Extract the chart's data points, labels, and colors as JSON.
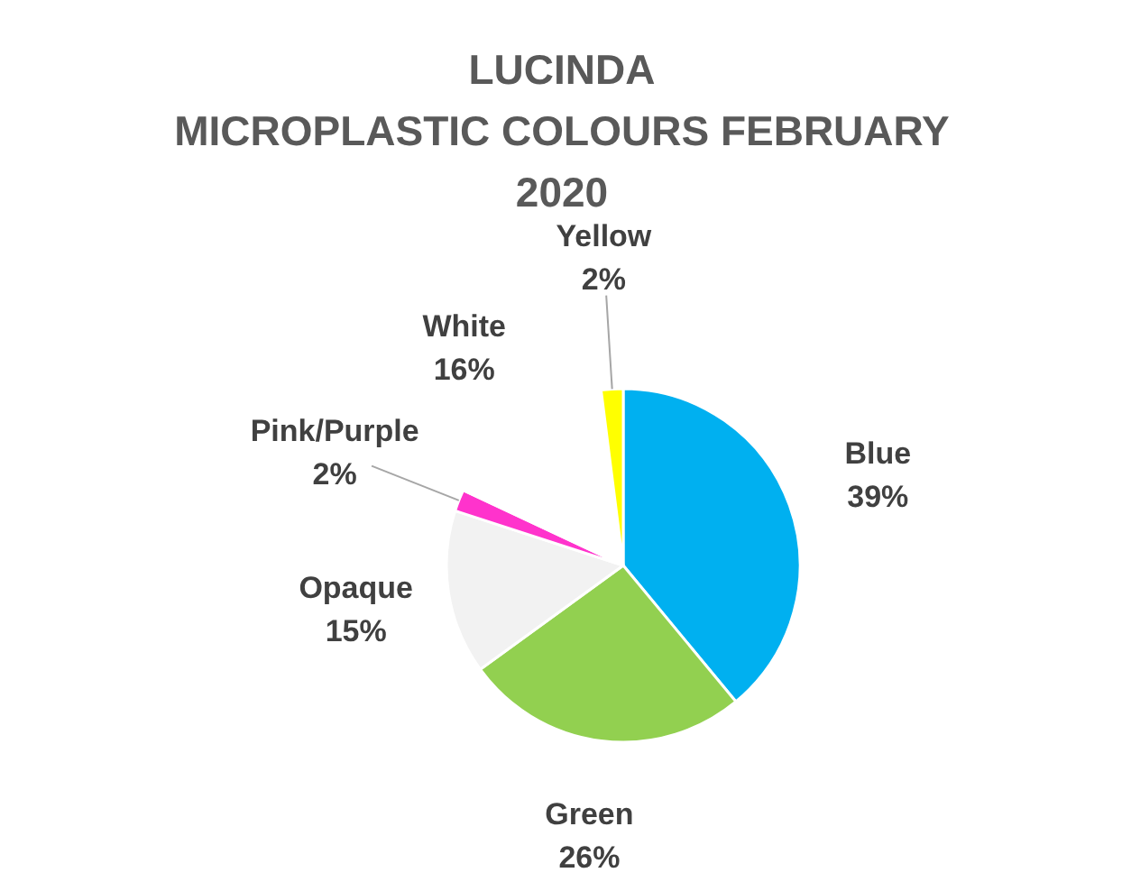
{
  "chart_data": {
    "type": "pie",
    "title": "LUCINDA\nMICROPLASTIC COLOURS FEBRUARY 2020",
    "categories": [
      "Blue",
      "Green",
      "Opaque",
      "Pink/Purple",
      "White",
      "Yellow"
    ],
    "values": [
      39,
      26,
      15,
      2,
      16,
      2
    ],
    "colors": [
      "#00b0f0",
      "#92d050",
      "#f2f2f2",
      "#ff33cc",
      "#ffffff",
      "#ffff00"
    ],
    "value_labels": [
      "39%",
      "26%",
      "15%",
      "2%",
      "16%",
      "2%"
    ]
  }
}
